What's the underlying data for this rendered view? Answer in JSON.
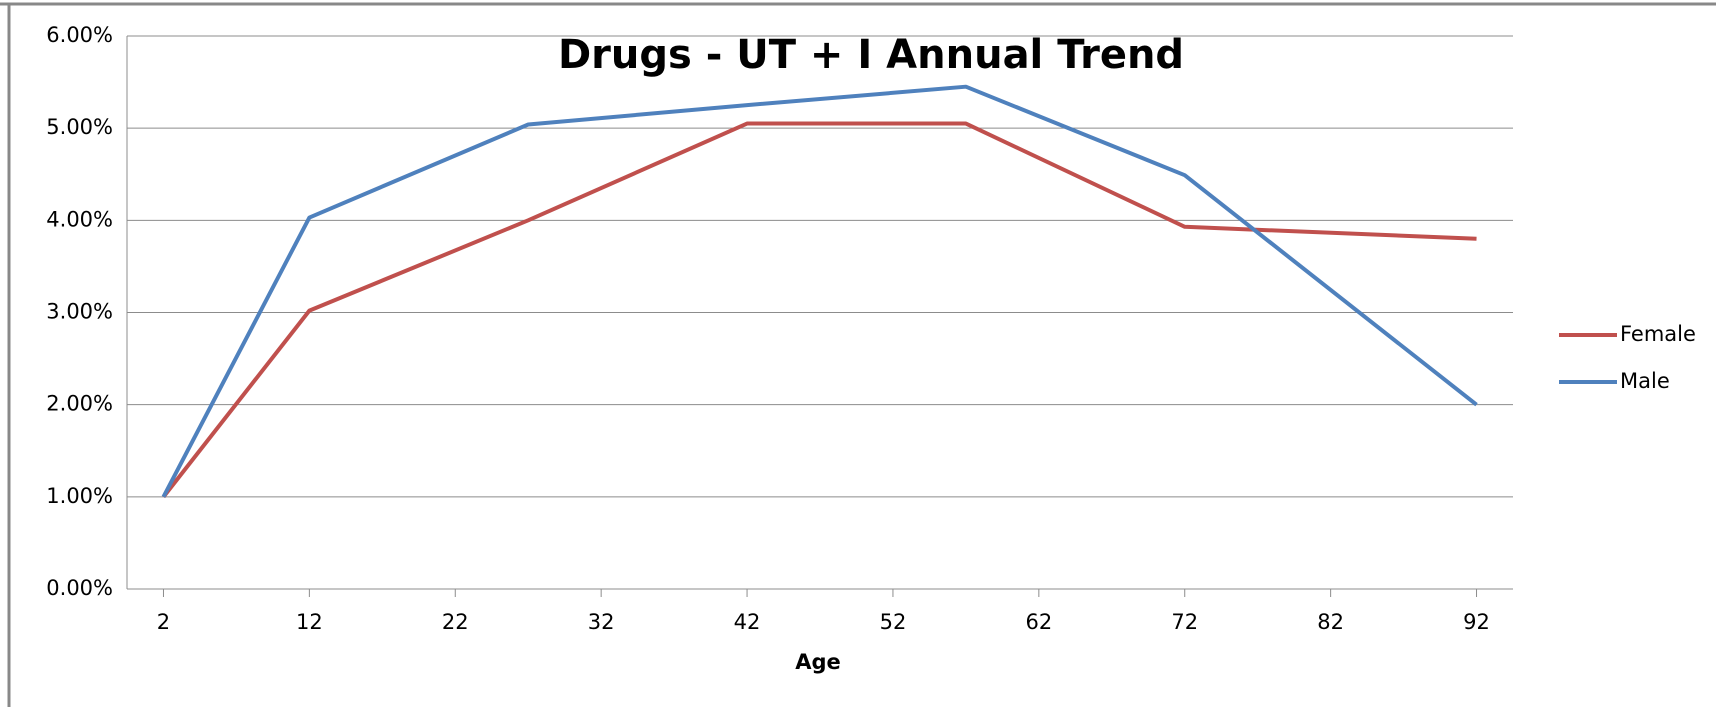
{
  "chart_data": {
    "type": "line",
    "title": "Drugs  -  UT + I Annual Trend",
    "x_label": "Age",
    "x": [
      2,
      12,
      27,
      42,
      57,
      72,
      92
    ],
    "series": [
      {
        "name": "Female",
        "color": "#c0504d",
        "values": [
          1.0,
          3.02,
          4.0,
          5.05,
          5.05,
          3.93,
          3.8
        ]
      },
      {
        "name": "Male",
        "color": "#4f81bd",
        "values": [
          1.0,
          4.03,
          5.04,
          5.25,
          5.45,
          4.49,
          2.0
        ]
      }
    ],
    "xlim": [
      -0.5,
      94.5
    ],
    "xticks": [
      2,
      12,
      22,
      32,
      42,
      52,
      62,
      72,
      82,
      92
    ],
    "ylim": [
      0,
      6
    ],
    "yticks": [
      {
        "value": 0,
        "label": "0.00%"
      },
      {
        "value": 1,
        "label": "1.00%"
      },
      {
        "value": 2,
        "label": "2.00%"
      },
      {
        "value": 3,
        "label": "3.00%"
      },
      {
        "value": 4,
        "label": "4.00%"
      },
      {
        "value": 5,
        "label": "5.00%"
      },
      {
        "value": 6,
        "label": "6.00%"
      }
    ],
    "grid": true,
    "legend": "right"
  }
}
